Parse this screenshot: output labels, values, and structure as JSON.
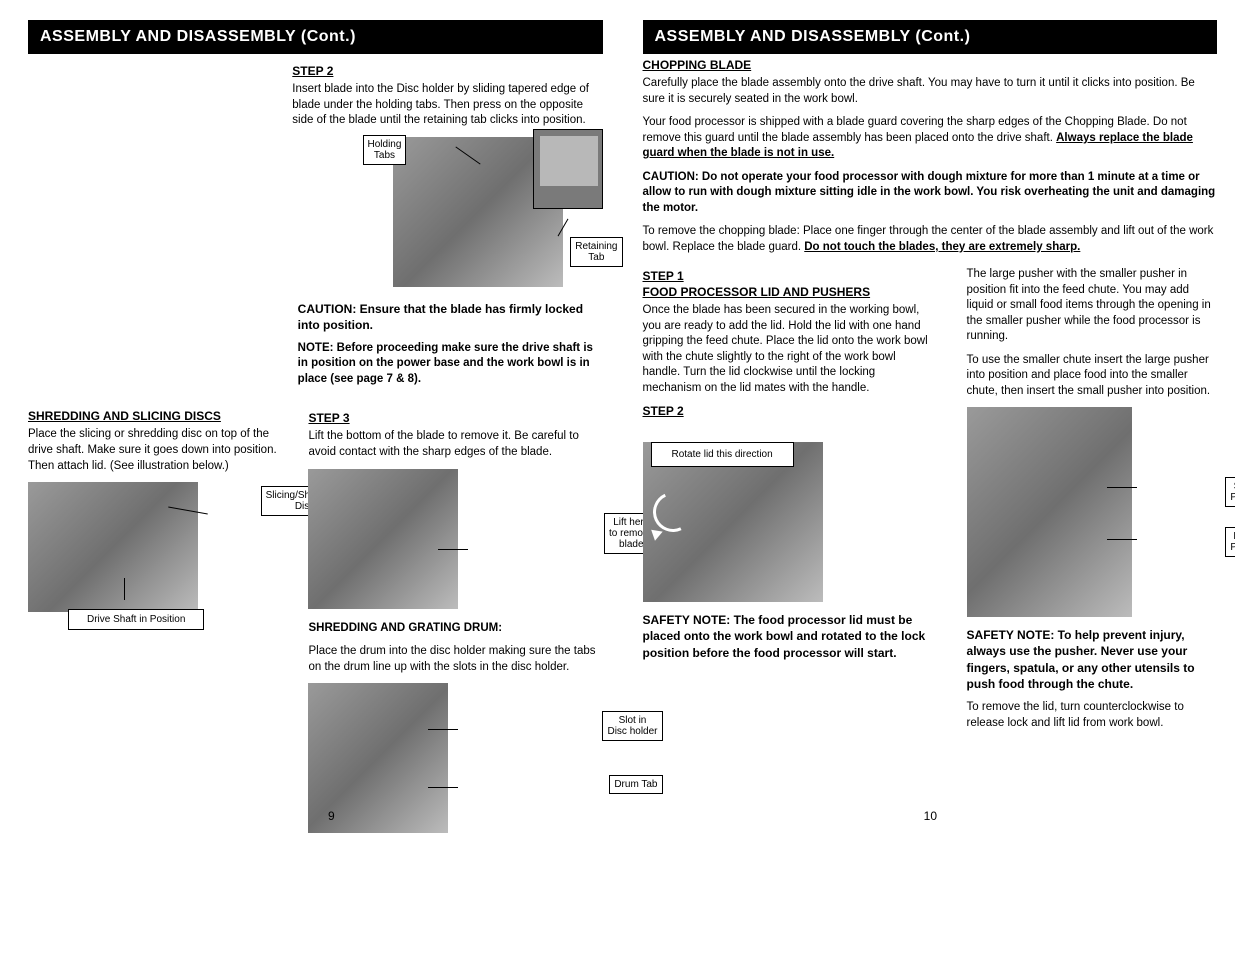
{
  "left": {
    "banner": "ASSEMBLY AND DISASSEMBLY (Cont.)",
    "intro_step": "STEP 2",
    "intro_para": "Insert blade into the Disc holder by sliding tapered edge of blade under the holding tabs. Then press on the opposite side of the blade until the retaining tab clicks into position.",
    "fig2": {
      "tabs_label": "Holding\nTabs",
      "retaining_label": "Retaining\nTab"
    },
    "caution_line": "CAUTION: Ensure that the blade has firmly locked into position.",
    "note": "NOTE: Before proceeding make sure the drive shaft is in position on the power base and the work bowl is in place (see page 7 & 8).",
    "shredslice_title": "SHREDDING AND SLICING DISCS",
    "shredslice_para": "Place the slicing or shredding disc on top of the drive shaft. Make sure it goes down into position. Then attach lid. (See illustration below.)",
    "fig_leftmain": {
      "disc_label": "Slicing/Shredding\nDisc",
      "shaft_label": "Drive Shaft in Position"
    },
    "step3": "STEP 3",
    "lift_para": "Lift the bottom of the blade to remove it. Be careful to avoid contact with the sharp edges of the blade.",
    "fig_step3": {
      "lift_label": "Lift here\nto remove\nblade"
    },
    "drum_title": "SHREDDING AND GRATING DRUM:",
    "drum_para": "Place the drum into the disc holder making sure the tabs on the drum line up with the slots in the disc holder.",
    "fig_drum": {
      "slot_label": "Slot in\nDisc holder",
      "tab_label": "Drum Tab"
    },
    "pagenum": "9"
  },
  "right": {
    "banner": "ASSEMBLY AND DISASSEMBLY (Cont.)",
    "blade_title": "CHOPPING BLADE",
    "blade_para1": "Carefully place the blade assembly onto the drive shaft. You may have to turn it until it clicks into position. Be sure it is securely seated in the work bowl.",
    "blade_para2": "Your food processor is shipped with a blade guard covering the sharp edges of the Chopping Blade. Do not remove this guard until the blade assembly has been placed onto the drive shaft. ",
    "blade_para2_u": "Always replace the blade guard when the blade is not in use.",
    "dough_caution": "CAUTION: Do not operate your food processor with dough mixture for more than 1 minute at a time or allow to run with dough mixture sitting idle in the work bowl. You risk overheating the unit and damaging the motor.",
    "blade_remove": "To remove the chopping blade: Place one finger through the center of the blade assembly and lift out of the work bowl. Replace the blade guard. ",
    "blade_remove_u": "Do not touch the blades, they are extremely sharp.",
    "lid_step1": "STEP 1",
    "lid_title": "FOOD PROCESSOR LID AND PUSHERS",
    "lid_para1": "Once the blade has been secured in the working bowl, you are ready to add the lid. Hold the lid with one hand gripping the feed chute. Place the lid onto the work bowl with the chute slightly to the right of the work bowl handle. Turn the lid clockwise until the locking mechanism on the lid mates with the handle.",
    "lid_step2": "STEP 2",
    "lid_para2": "The large pusher with the smaller pusher in position fit into the feed chute. You may add liquid or small food items through the opening in the smaller pusher while the food processor is running.",
    "lid_para3": "To use the smaller chute insert the large pusher into position and place food into the smaller chute, then insert the small pusher into position.",
    "fig_feed": {
      "small_label": "Small\nPusher",
      "large_label": "Large\nPusher"
    },
    "fig_rotate": {
      "rotate_label": "Rotate lid this direction"
    },
    "safety1": "SAFETY NOTE: The food processor lid must be placed onto the work bowl and rotated to the lock position before the food processor will start.",
    "safety2": "SAFETY NOTE: To help prevent injury, always use the pusher. Never use your fingers, spatula, or any other utensils to push food through the chute.",
    "remove_lid": "To remove the lid, turn counterclockwise to release lock and lift lid from work bowl.",
    "pagenum": "10"
  }
}
